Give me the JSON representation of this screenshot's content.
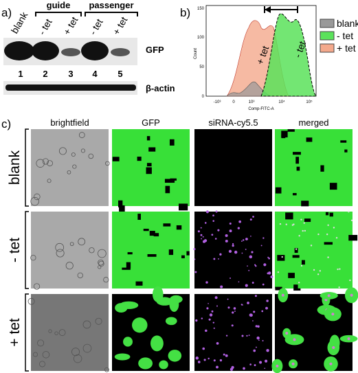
{
  "panel_a": {
    "label": "a)",
    "groups": [
      "guide",
      "passenger"
    ],
    "lanes": [
      "blank",
      "- tet",
      "+ tet",
      "- tet",
      "+ tet"
    ],
    "lane_numbers": [
      "1",
      "2",
      "3",
      "4",
      "5"
    ],
    "bands": [
      "GFP",
      "β-actin"
    ]
  },
  "panel_b": {
    "label": "b)",
    "y_axis_label": "Count",
    "x_axis_label": "Comp-FITC-A",
    "yticks": [
      "0",
      "50",
      "100",
      "150"
    ],
    "xticks": [
      "-10³",
      "0",
      "10³",
      "10⁴",
      "10⁵"
    ],
    "annotations": [
      "+ tet",
      "- tet"
    ],
    "legend": [
      "blank",
      "- tet",
      "+ tet"
    ]
  },
  "panel_c": {
    "label": "c)",
    "columns": [
      "brightfield",
      "GFP",
      "siRNA-cy5.5",
      "merged"
    ],
    "rows": [
      "blank",
      "- tet",
      "+ tet"
    ]
  }
}
